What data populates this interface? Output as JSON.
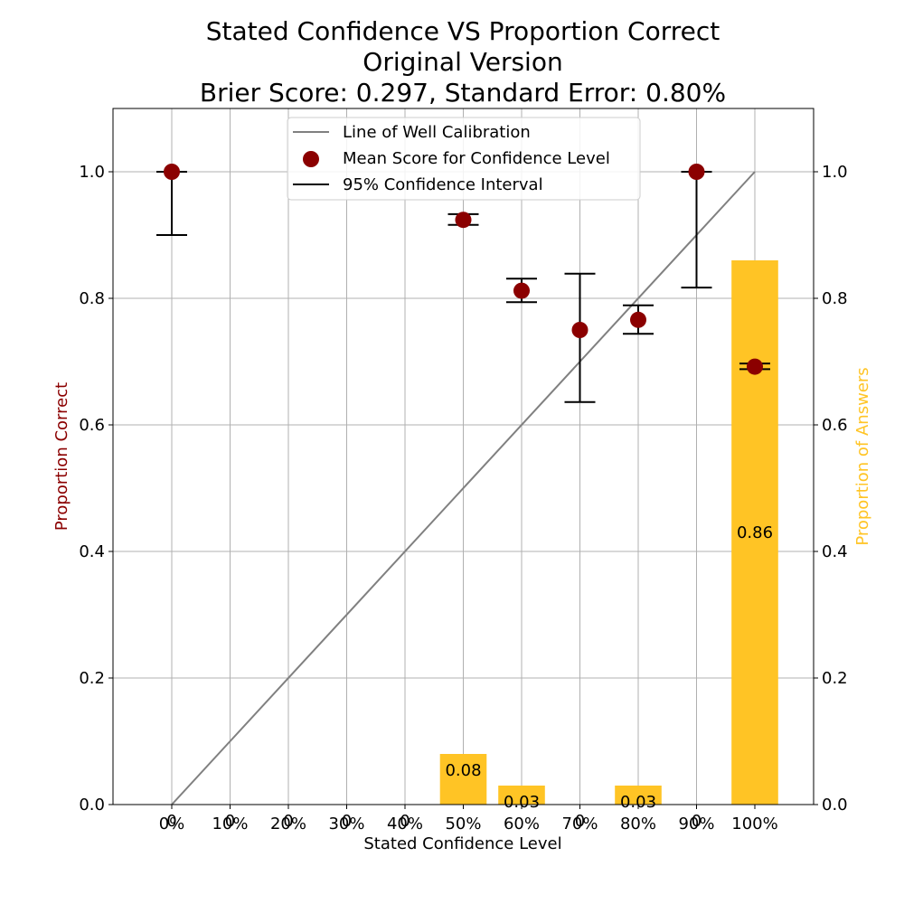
{
  "chart_data": {
    "type": "bar",
    "title_lines": [
      "Stated Confidence VS Proportion Correct",
      "Original Version",
      "Brier Score: 0.297, Standard Error: 0.80%"
    ],
    "xlabel": "Stated Confidence Level",
    "ylabel_left": "Proportion Correct",
    "ylabel_right": "Proportion of Answers",
    "categories": [
      "0%",
      "10%",
      "20%",
      "30%",
      "40%",
      "50%",
      "60%",
      "70%",
      "80%",
      "90%",
      "100%"
    ],
    "x_values": [
      0,
      0.1,
      0.2,
      0.3,
      0.4,
      0.5,
      0.6,
      0.7,
      0.8,
      0.9,
      1.0
    ],
    "ylim": [
      0,
      1.1
    ],
    "yticks": [
      0.0,
      0.2,
      0.4,
      0.6,
      0.8,
      1.0
    ],
    "ytick_labels": [
      "0.0",
      "0.2",
      "0.4",
      "0.6",
      "0.8",
      "1.0"
    ],
    "grid": true,
    "legend_placement": "upper center",
    "colors": {
      "calibration_line": "#808080",
      "points": "#8b0000",
      "bars": "#ffc425",
      "left_label": "#8b0000",
      "right_label": "#ffc425",
      "grid": "#b0b0b0"
    },
    "series": [
      {
        "name": "Line of Well Calibration",
        "kind": "line",
        "x": [
          0,
          1.0
        ],
        "y": [
          0,
          1.0
        ]
      },
      {
        "name": "Mean Score for Confidence Level",
        "kind": "scatter",
        "points": [
          {
            "x": 0.0,
            "y": 1.0
          },
          {
            "x": 0.5,
            "y": 0.924
          },
          {
            "x": 0.6,
            "y": 0.812
          },
          {
            "x": 0.7,
            "y": 0.75
          },
          {
            "x": 0.8,
            "y": 0.766
          },
          {
            "x": 0.9,
            "y": 1.0
          },
          {
            "x": 1.0,
            "y": 0.692
          }
        ]
      },
      {
        "name": "95% Confidence Interval",
        "kind": "errorbar",
        "intervals": [
          {
            "x": 0.0,
            "low": 0.9,
            "high": 1.0
          },
          {
            "x": 0.5,
            "low": 0.916,
            "high": 0.933
          },
          {
            "x": 0.6,
            "low": 0.794,
            "high": 0.831
          },
          {
            "x": 0.7,
            "low": 0.636,
            "high": 0.839
          },
          {
            "x": 0.8,
            "low": 0.744,
            "high": 0.789
          },
          {
            "x": 0.9,
            "low": 0.817,
            "high": 1.0
          },
          {
            "x": 1.0,
            "low": 0.688,
            "high": 0.697
          }
        ]
      },
      {
        "name": "Proportion of Answers",
        "kind": "bar",
        "values": [
          0,
          0,
          0,
          0,
          0,
          0.08,
          0.03,
          0,
          0.03,
          0,
          0.86
        ],
        "labels": [
          "0",
          "0",
          "0",
          "0",
          "0",
          "0.08",
          "0.03",
          "0",
          "0.03",
          "0",
          "0.86"
        ]
      }
    ]
  }
}
